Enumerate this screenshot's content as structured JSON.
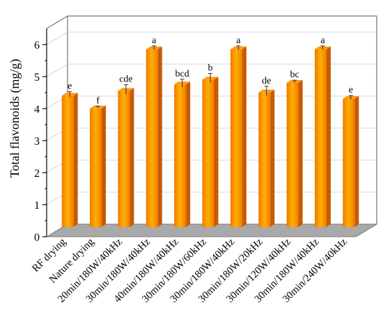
{
  "chart_data": {
    "type": "bar",
    "title": "",
    "xlabel": "",
    "ylabel": "Total flavonoids (mg/g)",
    "ylim": [
      0,
      6.5
    ],
    "yticks": [
      "0",
      "1",
      "2",
      "3",
      "4",
      "5",
      "6"
    ],
    "grid": true,
    "legend": "none",
    "categories": [
      "RF drying",
      "Nature drying",
      "20min/180W/40kHz",
      "30min/180W/40kHz",
      "40min/180W/40kHz",
      "30min/180W/60kHz",
      "30min/180W/40kHz",
      "30min/180W/20kHz",
      "30min/120W/40kHz",
      "30min/180W/40kHz",
      "30min/240W/40kHz"
    ],
    "series": [
      {
        "values": [
          4.1,
          3.7,
          4.25,
          5.55,
          4.45,
          4.6,
          5.55,
          4.2,
          4.5,
          5.55,
          4.0
        ],
        "errors": [
          0.08,
          0.03,
          0.15,
          0.06,
          0.12,
          0.15,
          0.06,
          0.15,
          0.04,
          0.06,
          0.06
        ],
        "significance": [
          "e",
          "f",
          "cde",
          "a",
          "bcd",
          "b",
          "a",
          "de",
          "bc",
          "a",
          "e"
        ]
      }
    ],
    "colors": {
      "bar_light": "#FFB000",
      "bar_dark": "#F07A00",
      "bar_side": "#C85A00",
      "bar_top": "#FF9A1A",
      "floor": "#A9A9A9"
    }
  }
}
